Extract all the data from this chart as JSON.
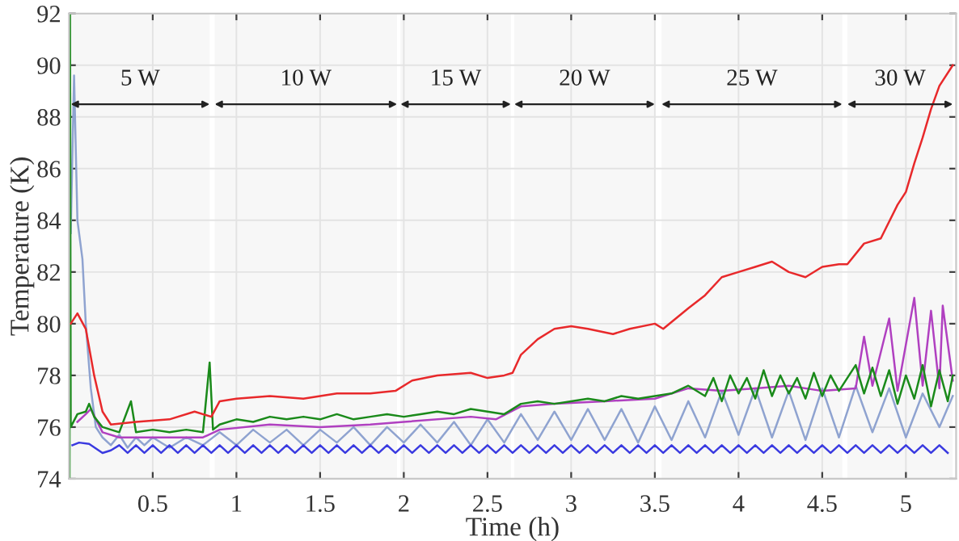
{
  "chart_data": {
    "type": "line",
    "xlabel": "Time (h)",
    "ylabel": "Temperature (K)",
    "xlim": [
      0,
      5.3
    ],
    "ylim": [
      74,
      92
    ],
    "xticks": [
      0.5,
      1,
      1.5,
      2,
      2.5,
      3,
      3.5,
      4,
      4.5,
      5
    ],
    "yticks": [
      74,
      76,
      78,
      80,
      82,
      84,
      86,
      88,
      90,
      92
    ],
    "grid": true,
    "legend": false,
    "bands": [
      {
        "axis": "x",
        "from": 0.01,
        "to": 0.84,
        "label": "5 W",
        "color": "#222222"
      },
      {
        "axis": "x",
        "from": 0.87,
        "to": 1.96,
        "label": "10 W",
        "color": "#222222"
      },
      {
        "axis": "x",
        "from": 1.98,
        "to": 2.64,
        "label": "15 W",
        "color": "#222222"
      },
      {
        "axis": "x",
        "from": 2.66,
        "to": 3.5,
        "label": "20 W",
        "color": "#222222"
      },
      {
        "axis": "x",
        "from": 3.54,
        "to": 4.62,
        "label": "25 W",
        "color": "#222222"
      },
      {
        "axis": "x",
        "from": 4.65,
        "to": 5.28,
        "label": "30 W",
        "color": "#222222"
      }
    ],
    "series": [
      {
        "color": "#8fa3d0",
        "x": [
          0.01,
          0.03,
          0.05,
          0.08,
          0.1,
          0.13,
          0.16,
          0.2,
          0.25,
          0.3,
          0.35,
          0.4,
          0.45,
          0.5,
          0.6,
          0.7,
          0.8,
          0.9,
          1.0,
          1.1,
          1.2,
          1.3,
          1.4,
          1.5,
          1.6,
          1.7,
          1.8,
          1.9,
          2.0,
          2.1,
          2.2,
          2.3,
          2.4,
          2.5,
          2.6,
          2.7,
          2.8,
          2.9,
          3.0,
          3.1,
          3.2,
          3.3,
          3.4,
          3.5,
          3.6,
          3.7,
          3.8,
          3.9,
          4.0,
          4.1,
          4.2,
          4.3,
          4.4,
          4.5,
          4.6,
          4.7,
          4.8,
          4.9,
          5.0,
          5.1,
          5.2,
          5.28
        ],
        "values": [
          83.5,
          89.6,
          84.0,
          82.5,
          80.0,
          77.5,
          76.0,
          75.6,
          75.3,
          75.7,
          75.2,
          75.6,
          75.3,
          75.6,
          75.2,
          75.6,
          75.3,
          75.8,
          75.3,
          75.9,
          75.4,
          75.9,
          75.3,
          75.9,
          75.4,
          76.0,
          75.3,
          76.0,
          75.4,
          76.1,
          75.4,
          76.2,
          75.3,
          76.3,
          75.4,
          76.5,
          75.5,
          76.6,
          75.5,
          76.7,
          75.5,
          76.7,
          75.4,
          76.8,
          75.5,
          77.0,
          75.6,
          77.4,
          75.7,
          77.5,
          75.6,
          77.4,
          75.5,
          77.5,
          75.6,
          77.6,
          75.8,
          77.5,
          75.6,
          77.3,
          76.0,
          77.2
        ]
      },
      {
        "color": "#b040c0",
        "x": [
          0.05,
          0.1,
          0.13,
          0.2,
          0.3,
          0.5,
          0.8,
          0.9,
          1.2,
          1.5,
          1.8,
          2.0,
          2.4,
          2.55,
          2.7,
          2.9,
          3.2,
          3.5,
          3.7,
          3.9,
          4.1,
          4.3,
          4.5,
          4.7,
          4.75,
          4.8,
          4.9,
          4.95,
          5.05,
          5.1,
          5.15,
          5.2,
          5.22,
          5.28
        ],
        "values": [
          76.2,
          76.5,
          76.7,
          75.8,
          75.6,
          75.6,
          75.6,
          75.9,
          76.1,
          76.0,
          76.1,
          76.2,
          76.4,
          76.3,
          76.8,
          76.9,
          77.0,
          77.1,
          77.5,
          77.4,
          77.5,
          77.6,
          77.4,
          77.5,
          79.5,
          77.6,
          80.2,
          77.4,
          81.0,
          77.6,
          80.5,
          77.5,
          80.7,
          77.8
        ]
      },
      {
        "color": "#1a8a1a",
        "x": [
          0.003,
          0.006,
          0.01,
          0.05,
          0.1,
          0.12,
          0.15,
          0.2,
          0.3,
          0.37,
          0.4,
          0.5,
          0.6,
          0.7,
          0.8,
          0.84,
          0.86,
          0.9,
          1.0,
          1.1,
          1.2,
          1.3,
          1.4,
          1.5,
          1.6,
          1.7,
          1.8,
          1.9,
          2.0,
          2.1,
          2.2,
          2.3,
          2.4,
          2.5,
          2.6,
          2.7,
          2.8,
          2.9,
          3.0,
          3.1,
          3.2,
          3.3,
          3.4,
          3.5,
          3.6,
          3.7,
          3.8,
          3.85,
          3.9,
          3.95,
          4.0,
          4.05,
          4.1,
          4.15,
          4.2,
          4.25,
          4.3,
          4.35,
          4.4,
          4.45,
          4.5,
          4.55,
          4.6,
          4.65,
          4.7,
          4.75,
          4.8,
          4.85,
          4.9,
          4.95,
          5.0,
          5.05,
          5.1,
          5.15,
          5.2,
          5.25,
          5.28
        ],
        "values": [
          74.0,
          92.0,
          76.0,
          76.5,
          76.6,
          76.9,
          76.4,
          76.0,
          75.8,
          77.0,
          75.8,
          75.9,
          75.8,
          75.9,
          75.8,
          78.5,
          75.9,
          76.1,
          76.3,
          76.2,
          76.4,
          76.3,
          76.4,
          76.3,
          76.5,
          76.3,
          76.4,
          76.5,
          76.4,
          76.5,
          76.6,
          76.5,
          76.7,
          76.6,
          76.5,
          76.9,
          77.0,
          76.9,
          77.0,
          77.1,
          77.0,
          77.2,
          77.1,
          77.2,
          77.3,
          77.6,
          77.2,
          77.9,
          77.0,
          78.0,
          77.3,
          77.9,
          77.1,
          78.2,
          77.2,
          78.0,
          77.3,
          77.9,
          77.1,
          78.1,
          77.2,
          78.0,
          77.4,
          77.9,
          78.4,
          77.3,
          78.3,
          77.2,
          78.2,
          76.9,
          78.0,
          77.1,
          78.4,
          76.8,
          78.2,
          77.0,
          78.0
        ]
      },
      {
        "color": "#e8292b",
        "x": [
          0.01,
          0.05,
          0.1,
          0.15,
          0.2,
          0.25,
          0.4,
          0.6,
          0.75,
          0.85,
          0.9,
          1.0,
          1.2,
          1.4,
          1.6,
          1.8,
          1.95,
          2.05,
          2.2,
          2.4,
          2.5,
          2.6,
          2.65,
          2.7,
          2.8,
          2.9,
          3.0,
          3.1,
          3.25,
          3.35,
          3.5,
          3.55,
          3.7,
          3.8,
          3.9,
          4.0,
          4.1,
          4.2,
          4.3,
          4.4,
          4.5,
          4.6,
          4.65,
          4.75,
          4.85,
          4.95,
          5.0,
          5.05,
          5.1,
          5.15,
          5.2,
          5.28
        ],
        "values": [
          80.0,
          80.4,
          79.8,
          78.0,
          76.6,
          76.1,
          76.2,
          76.3,
          76.6,
          76.4,
          77.0,
          77.1,
          77.2,
          77.1,
          77.3,
          77.3,
          77.4,
          77.8,
          78.0,
          78.1,
          77.9,
          78.0,
          78.1,
          78.8,
          79.4,
          79.8,
          79.9,
          79.8,
          79.6,
          79.8,
          80.0,
          79.8,
          80.6,
          81.1,
          81.8,
          82.0,
          82.2,
          82.4,
          82.0,
          81.8,
          82.2,
          82.3,
          82.3,
          83.1,
          83.3,
          84.6,
          85.1,
          86.2,
          87.2,
          88.3,
          89.2,
          90.0
        ]
      },
      {
        "color": "#3a3ae0",
        "x": [
          0.02,
          0.06,
          0.12,
          0.2,
          0.25,
          0.3,
          0.35,
          0.4,
          0.45,
          0.5,
          0.55,
          0.6,
          0.65,
          0.7,
          0.75,
          0.8,
          0.85,
          0.9,
          0.95,
          1.0,
          1.05,
          1.1,
          1.15,
          1.2,
          1.25,
          1.3,
          1.35,
          1.4,
          1.45,
          1.5,
          1.55,
          1.6,
          1.65,
          1.7,
          1.75,
          1.8,
          1.85,
          1.9,
          1.95,
          2.0,
          2.05,
          2.1,
          2.15,
          2.2,
          2.25,
          2.3,
          2.35,
          2.4,
          2.45,
          2.5,
          2.55,
          2.6,
          2.65,
          2.7,
          2.75,
          2.8,
          2.85,
          2.9,
          2.95,
          3.0,
          3.05,
          3.1,
          3.15,
          3.2,
          3.25,
          3.3,
          3.35,
          3.4,
          3.45,
          3.5,
          3.55,
          3.6,
          3.65,
          3.7,
          3.75,
          3.8,
          3.85,
          3.9,
          3.95,
          4.0,
          4.05,
          4.1,
          4.15,
          4.2,
          4.25,
          4.3,
          4.35,
          4.4,
          4.45,
          4.5,
          4.55,
          4.6,
          4.65,
          4.7,
          4.75,
          4.8,
          4.85,
          4.9,
          4.95,
          5.0,
          5.05,
          5.1,
          5.15,
          5.2,
          5.25
        ],
        "values": [
          75.3,
          75.4,
          75.35,
          75.0,
          75.1,
          75.3,
          75.0,
          75.3,
          75.0,
          75.3,
          75.0,
          75.3,
          75.0,
          75.3,
          75.0,
          75.3,
          75.0,
          75.3,
          75.0,
          75.3,
          75.0,
          75.3,
          75.0,
          75.3,
          75.0,
          75.3,
          75.0,
          75.3,
          75.0,
          75.3,
          75.0,
          75.3,
          75.0,
          75.3,
          75.0,
          75.3,
          75.0,
          75.3,
          75.0,
          75.3,
          75.0,
          75.3,
          75.0,
          75.3,
          75.0,
          75.3,
          75.0,
          75.3,
          75.0,
          75.3,
          75.0,
          75.3,
          75.0,
          75.3,
          75.0,
          75.3,
          75.0,
          75.3,
          75.0,
          75.3,
          75.0,
          75.3,
          75.0,
          75.3,
          75.0,
          75.3,
          75.0,
          75.3,
          75.0,
          75.3,
          75.0,
          75.3,
          75.0,
          75.3,
          75.0,
          75.3,
          75.0,
          75.3,
          75.0,
          75.3,
          75.0,
          75.3,
          75.0,
          75.3,
          75.0,
          75.3,
          75.0,
          75.3,
          75.0,
          75.3,
          75.0,
          75.3,
          75.0,
          75.3,
          75.0,
          75.3,
          75.0,
          75.3,
          75.0,
          75.3,
          75.0,
          75.3,
          75.0,
          75.3,
          75.0
        ]
      }
    ]
  }
}
